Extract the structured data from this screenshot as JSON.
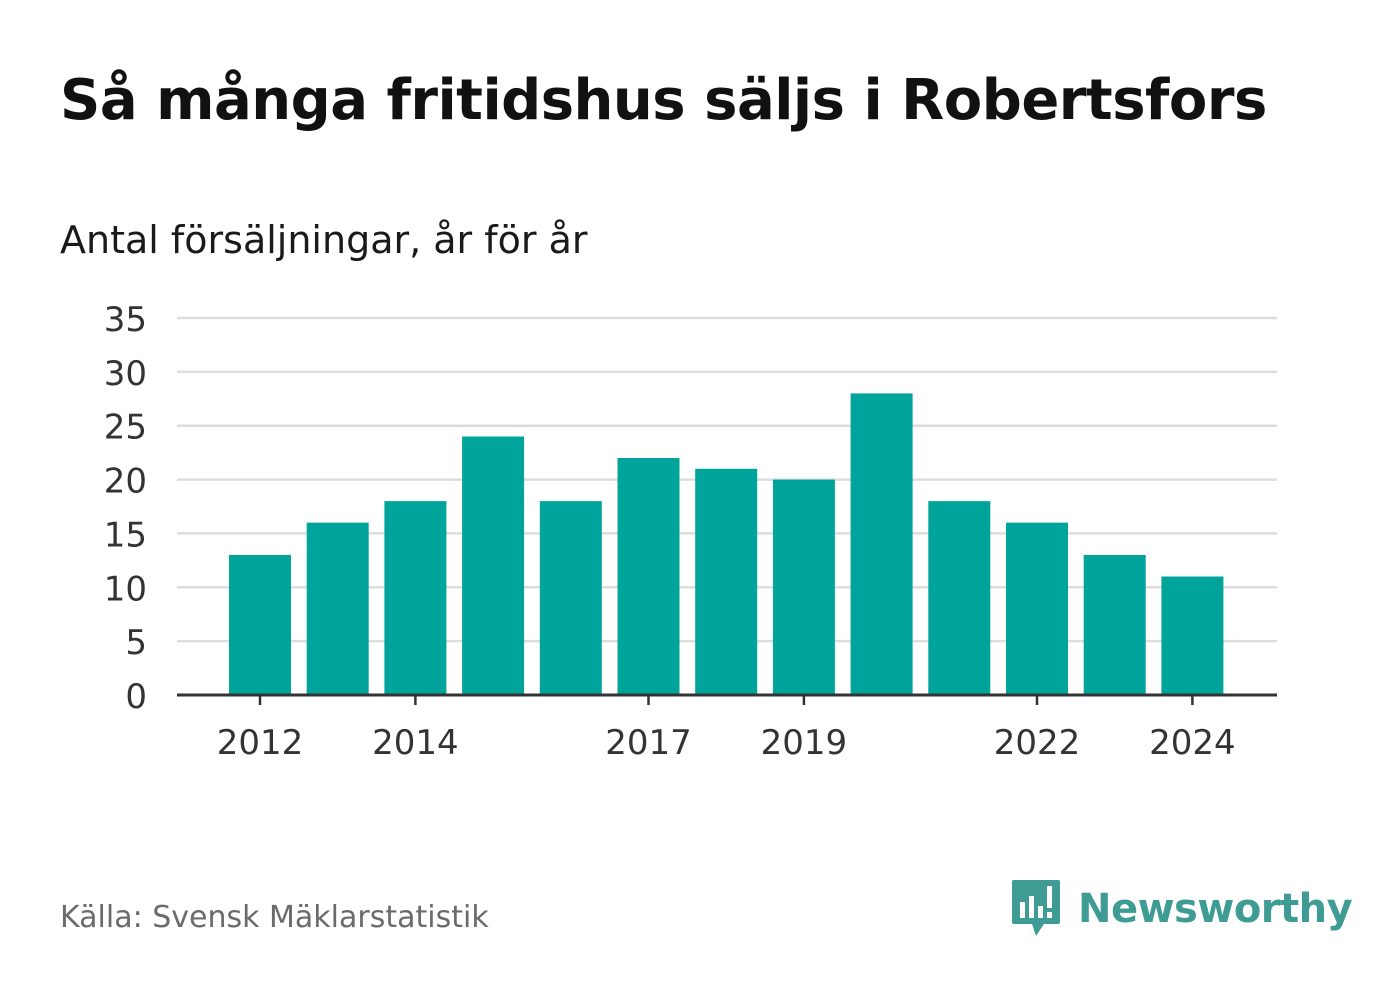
{
  "header": {
    "title": "Så många fritidshus säljs i Robertsfors",
    "subtitle": "Antal försäljningar, år för år"
  },
  "footer": {
    "source": "Källa: Svensk Mäklarstatistik",
    "brand": "Newsworthy"
  },
  "colors": {
    "bar": "#00a49a",
    "brand": "#3f9c94",
    "grid": "#dddddd",
    "axis": "#333333"
  },
  "chart_data": {
    "type": "bar",
    "categories": [
      "2012",
      "2013",
      "2014",
      "2015",
      "2016",
      "2017",
      "2018",
      "2019",
      "2020",
      "2021",
      "2022",
      "2023",
      "2024"
    ],
    "values": [
      13,
      16,
      18,
      24,
      18,
      22,
      21,
      20,
      28,
      18,
      16,
      13,
      11
    ],
    "x_tick_labels": [
      "2012",
      "2014",
      "2017",
      "2019",
      "2022",
      "2024"
    ],
    "y_ticks": [
      0,
      5,
      10,
      15,
      20,
      25,
      30,
      35
    ],
    "ylim": [
      0,
      35
    ],
    "grid": true,
    "title": "Så många fritidshus säljs i Robertsfors",
    "subtitle": "Antal försäljningar, år för år",
    "xlabel": "",
    "ylabel": ""
  }
}
